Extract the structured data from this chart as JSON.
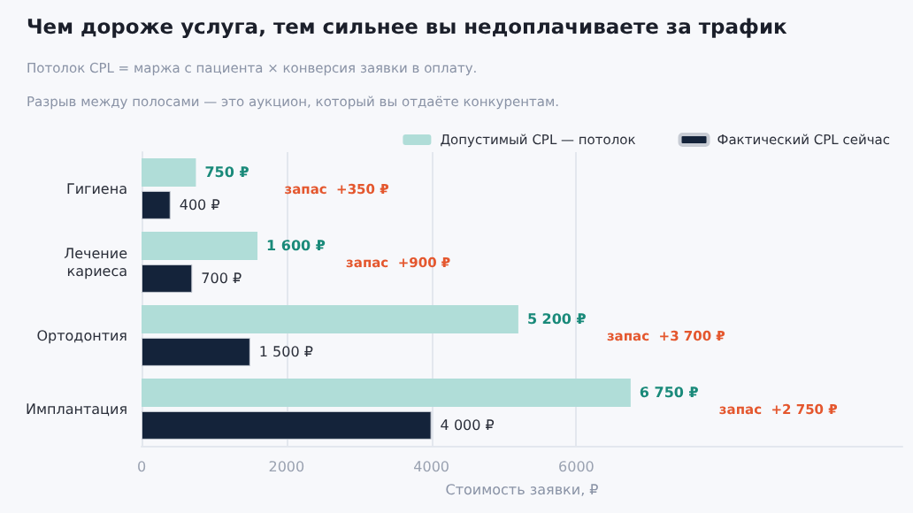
{
  "chart_data": {
    "type": "bar",
    "orientation": "horizontal",
    "title": "Чем дороже услуга, тем сильнее вы недоплачиваете за трафик",
    "subtitle": "Потолок CPL = маржа с пациента × конверсия заявки в оплату.\nРазрыв между полосами — это аукцион, который вы отдаёте конкурентам.",
    "xlabel": "Стоимость заявки, ₽",
    "categories": [
      "Гигиена",
      "Лечение кариеса",
      "Ортодонтия",
      "Имплантация"
    ],
    "series": [
      {
        "name": "Допустимый CPL — потолок",
        "color": "#b0ddd8",
        "values": [
          750,
          1600,
          5200,
          6750
        ],
        "value_labels": [
          "750 ₽",
          "1 600 ₽",
          "5 200 ₽",
          "6 750 ₽"
        ]
      },
      {
        "name": "Фактический CPL сейчас",
        "color": "#14233a",
        "values": [
          400,
          700,
          1500,
          4000
        ],
        "value_labels": [
          "400 ₽",
          "700 ₽",
          "1 500 ₽",
          "4 000 ₽"
        ]
      }
    ],
    "xlim": [
      0,
      10500
    ],
    "xticks": [
      0,
      2000,
      4000,
      6000
    ],
    "grid": "x",
    "legend": "top right",
    "annotations": [
      "запас  +350 ₽",
      "запас  +900 ₽",
      "запас  +3 700 ₽",
      "запас  +2 750 ₽"
    ]
  }
}
